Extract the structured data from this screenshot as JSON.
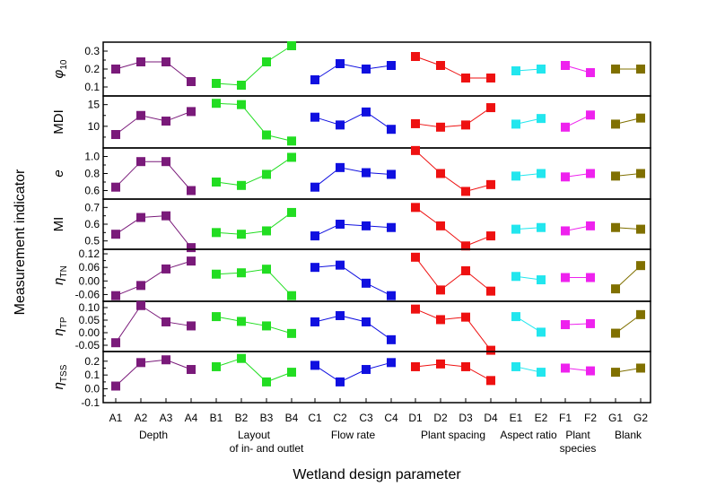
{
  "chart_data": {
    "type": "scatter",
    "xlabel": "Wetland design parameter",
    "ylabel": "Measurement indicator",
    "categories": [
      "A1",
      "A2",
      "A3",
      "A4",
      "B1",
      "B2",
      "B3",
      "B4",
      "C1",
      "C2",
      "C3",
      "C4",
      "D1",
      "D2",
      "D3",
      "D4",
      "E1",
      "E2",
      "F1",
      "F2",
      "G1",
      "G2"
    ],
    "groups": [
      {
        "label": "Depth",
        "label2": "",
        "members": [
          "A1",
          "A2",
          "A3",
          "A4"
        ],
        "color": "#7a1a7a"
      },
      {
        "label": "Layout",
        "label2": "of in- and outlet",
        "members": [
          "B1",
          "B2",
          "B3",
          "B4"
        ],
        "color": "#22dd22"
      },
      {
        "label": "Flow rate",
        "label2": "",
        "members": [
          "C1",
          "C2",
          "C3",
          "C4"
        ],
        "color": "#1010e0"
      },
      {
        "label": "Plant spacing",
        "label2": "",
        "members": [
          "D1",
          "D2",
          "D3",
          "D4"
        ],
        "color": "#ee1111"
      },
      {
        "label": "Aspect ratio",
        "label2": "",
        "members": [
          "E1",
          "E2"
        ],
        "color": "#22e6ee"
      },
      {
        "label": "Plant",
        "label2": "species",
        "members": [
          "F1",
          "F2"
        ],
        "color": "#ee22ee"
      },
      {
        "label": "Blank",
        "label2": "",
        "members": [
          "G1",
          "G2"
        ],
        "color": "#807000"
      }
    ],
    "panels": [
      {
        "label": "φ",
        "sub": "10",
        "italic": true,
        "ylim": [
          0.05,
          0.35
        ],
        "ticks": [
          "0.1",
          "0.2",
          "0.3"
        ],
        "minor": [
          0.15,
          0.25
        ],
        "values": [
          0.2,
          0.24,
          0.24,
          0.13,
          0.12,
          0.11,
          0.24,
          0.33,
          0.14,
          0.23,
          0.2,
          0.22,
          0.27,
          0.22,
          0.15,
          0.15,
          0.19,
          0.2,
          0.22,
          0.18,
          0.2,
          0.2
        ]
      },
      {
        "label": "MDI",
        "sub": "",
        "italic": false,
        "ylim": [
          5,
          17
        ],
        "ticks": [
          "10",
          "15"
        ],
        "minor": [
          7.5,
          12.5
        ],
        "values": [
          8.1,
          12.5,
          11.2,
          13.4,
          15.3,
          15.0,
          8.0,
          6.6,
          12.1,
          10.3,
          13.3,
          9.3,
          10.6,
          9.8,
          10.3,
          14.3,
          10.5,
          11.8,
          9.8,
          12.6,
          10.5,
          11.9
        ]
      },
      {
        "label": "e",
        "sub": "",
        "italic": true,
        "ylim": [
          0.5,
          1.1
        ],
        "ticks": [
          "1.0",
          "0.8",
          "0.6"
        ],
        "minor": [
          0.7,
          0.9
        ],
        "values": [
          0.64,
          0.94,
          0.94,
          0.6,
          0.7,
          0.66,
          0.79,
          0.99,
          0.64,
          0.87,
          0.81,
          0.79,
          1.07,
          0.8,
          0.59,
          0.67,
          0.77,
          0.8,
          0.76,
          0.8,
          0.77,
          0.8
        ]
      },
      {
        "label": "MI",
        "sub": "",
        "italic": false,
        "ylim": [
          0.45,
          0.75
        ],
        "ticks": [
          "0.7",
          "0.6",
          "0.5"
        ],
        "minor": [
          0.55,
          0.65
        ],
        "values": [
          0.54,
          0.64,
          0.65,
          0.46,
          0.55,
          0.54,
          0.56,
          0.67,
          0.53,
          0.6,
          0.59,
          0.58,
          0.7,
          0.59,
          0.47,
          0.53,
          0.57,
          0.58,
          0.56,
          0.59,
          0.58,
          0.57
        ]
      },
      {
        "label": "η",
        "sub": "TN",
        "italic": true,
        "ylim": [
          -0.09,
          0.14
        ],
        "ticks": [
          "0.12",
          "0.06",
          "0.00",
          "-0.06"
        ],
        "minor": [
          0.09,
          0.03,
          -0.03
        ],
        "values": [
          -0.065,
          -0.02,
          0.053,
          0.088,
          0.03,
          0.036,
          0.052,
          -0.065,
          0.06,
          0.07,
          -0.01,
          -0.065,
          0.105,
          -0.04,
          0.045,
          -0.045,
          0.02,
          0.005,
          0.015,
          0.015,
          -0.035,
          0.068
        ]
      },
      {
        "label": "η",
        "sub": "TP",
        "italic": true,
        "ylim": [
          -0.075,
          0.125
        ],
        "ticks": [
          "0.10",
          "0.05",
          "0.00",
          "-0.05"
        ],
        "minor": [
          0.075,
          0.025,
          -0.025
        ],
        "values": [
          -0.04,
          0.108,
          0.043,
          0.027,
          0.064,
          0.045,
          0.027,
          -0.003,
          0.043,
          0.068,
          0.043,
          -0.028,
          0.094,
          0.052,
          0.062,
          -0.07,
          0.064,
          0.002,
          0.032,
          0.036,
          -0.002,
          0.072
        ]
      },
      {
        "label": "η",
        "sub": "TSS",
        "italic": true,
        "ylim": [
          -0.1,
          0.27
        ],
        "ticks": [
          "0.2",
          "0.1",
          "0.0",
          "-0.1"
        ],
        "minor": [
          0.15,
          0.05,
          -0.05
        ],
        "values": [
          0.02,
          0.19,
          0.21,
          0.14,
          0.16,
          0.22,
          0.05,
          0.12,
          0.17,
          0.05,
          0.14,
          0.19,
          0.16,
          0.18,
          0.16,
          0.06,
          0.16,
          0.12,
          0.15,
          0.13,
          0.12,
          0.15
        ]
      }
    ]
  }
}
